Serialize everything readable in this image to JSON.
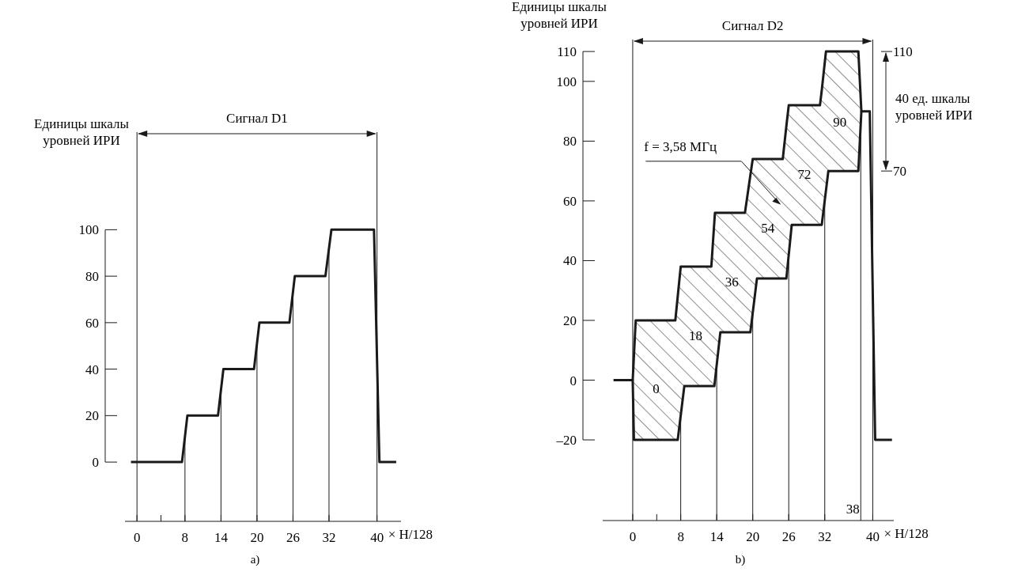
{
  "chart_data": [
    {
      "type": "line",
      "title": "Сигнал D1",
      "ylabel": "Единицы шкалы уровней ИРИ",
      "xlabel": "× H/128",
      "xlim": [
        -2,
        44
      ],
      "ylim": [
        -25.5,
        142
      ],
      "xticks": [
        0,
        {
          "value": 4,
          "label": null
        },
        8,
        14,
        20,
        26,
        32,
        40
      ],
      "yticks": [
        0,
        20,
        40,
        60,
        80,
        100
      ],
      "series": [
        {
          "color": "#1a1a1a",
          "x": [
            -1,
            7.5,
            8.4,
            13.5,
            14.4,
            19.5,
            20.4,
            25.4,
            26.3,
            31.4,
            32.4,
            39.5,
            40.4,
            43.2
          ],
          "values": [
            0,
            0,
            20,
            20,
            40,
            40,
            60,
            60,
            80,
            80,
            100,
            100,
            0,
            0
          ]
        }
      ],
      "ref_lines": [
        {
          "axis": "x",
          "value": 0
        },
        {
          "axis": "x",
          "value": 8
        },
        {
          "axis": "x",
          "value": 14
        },
        {
          "axis": "x",
          "value": 20
        },
        {
          "axis": "x",
          "value": 26
        },
        {
          "axis": "x",
          "value": 32
        },
        {
          "axis": "x",
          "value": 40
        }
      ],
      "marker": "none",
      "line_style": "solid",
      "grid": false,
      "annotations": [
        "a)"
      ]
    },
    {
      "type": "line",
      "title": "Сигнал D2",
      "ylabel": "Единицы шкалы уровней ИРИ",
      "xlabel": "× H/128",
      "y2label": "40 ед. шкалы уровней ИРИ",
      "xlim": [
        -5,
        43.5
      ],
      "ylim": [
        -47,
        114
      ],
      "y2lim": [
        -47,
        114
      ],
      "xticks": [
        0,
        {
          "value": 4,
          "label": null
        },
        8,
        14,
        20,
        26,
        32,
        40
      ],
      "yticks": [
        {
          "value": -20,
          "label": "–20"
        },
        0,
        20,
        40,
        60,
        80,
        100,
        110
      ],
      "y2ticks": [
        70,
        110
      ],
      "series": [
        {
          "color": "#1a1a1a",
          "x": [
            -3.2,
            0,
            0.2,
            0.5,
            7.1,
            7.5,
            8,
            8.6,
            13.1,
            13.6,
            13.7,
            14.6,
            18.7,
            19.6,
            20,
            20.7,
            25,
            25.6,
            26,
            26.5,
            31.2,
            31.5,
            32.2,
            32.6,
            37.6,
            38.1,
            39.5,
            40.4,
            43.2
          ],
          "values": [
            0,
            0,
            8,
            20,
            20,
            28,
            38,
            38,
            38,
            53,
            56,
            56,
            56,
            68.5,
            74,
            74,
            74,
            85,
            92,
            92,
            92,
            97,
            110,
            110,
            110,
            90,
            90,
            -20,
            -20
          ],
          "lower": [
            null,
            0,
            -20,
            -20,
            -20,
            -20,
            -12,
            -2,
            -2,
            -2,
            0,
            16,
            16,
            16,
            22.5,
            34,
            34,
            34,
            42,
            52,
            52,
            52,
            63.5,
            70,
            70,
            90,
            null,
            null,
            null
          ],
          "upper": [
            null,
            0,
            8,
            20,
            20,
            28,
            38,
            38,
            38,
            53,
            56,
            56,
            56,
            68.5,
            74,
            74,
            74,
            85,
            92,
            92,
            92,
            97,
            110,
            110,
            110,
            90,
            null,
            null,
            null
          ]
        },
        {
          "color": "#1a1a1a",
          "x": [
            0,
            0.2,
            7.5,
            8.6,
            13.6,
            14.6,
            19.6,
            20.7,
            25.6,
            26.5,
            31.5,
            32.6,
            37.6,
            38.1
          ],
          "values": [
            0,
            -20,
            -20,
            -2,
            -2,
            16,
            16,
            34,
            34,
            52,
            52,
            70,
            70,
            90
          ]
        }
      ],
      "ref_lines": [
        {
          "axis": "x",
          "value": 0
        },
        {
          "axis": "x",
          "value": 8
        },
        {
          "axis": "x",
          "value": 14
        },
        {
          "axis": "x",
          "value": 20
        },
        {
          "axis": "x",
          "value": 26
        },
        {
          "axis": "x",
          "value": 32
        },
        {
          "axis": "x",
          "value": 38
        },
        {
          "axis": "x",
          "value": 40
        }
      ],
      "marker": "none",
      "line_style": "solid",
      "grid": false,
      "annotations": [
        "f = 3,58 МГц",
        "0",
        "18",
        "36",
        "54",
        "72",
        "90",
        "38",
        "b)"
      ]
    }
  ]
}
